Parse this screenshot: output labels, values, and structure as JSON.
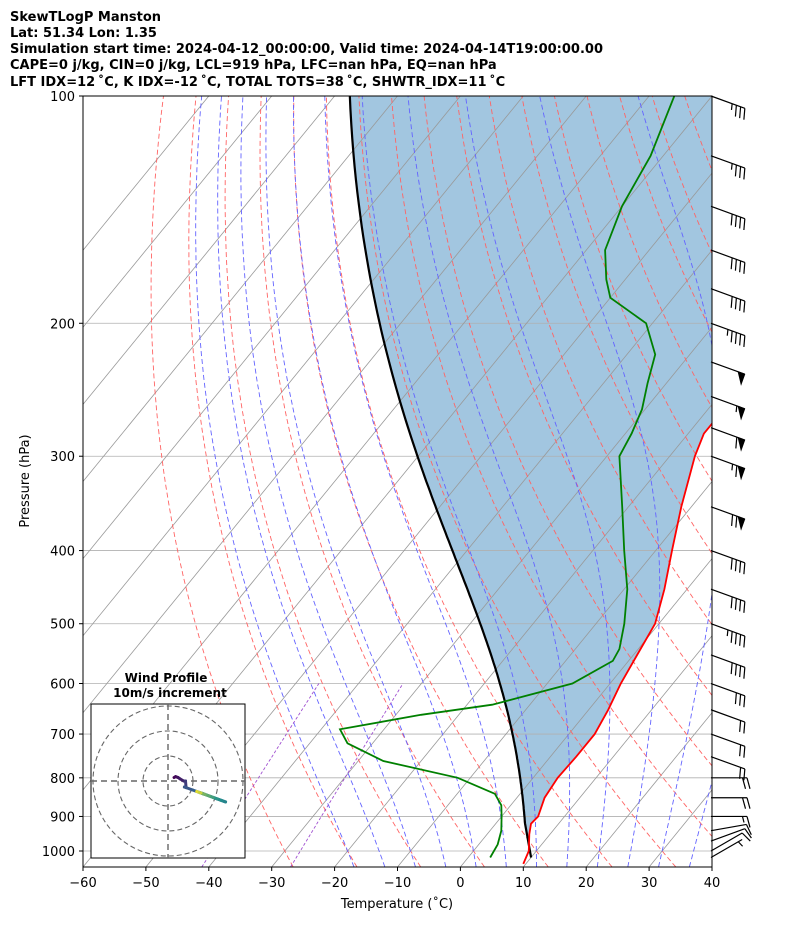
{
  "header": {
    "line1": "SkewTLogP Manston",
    "line2": "Lat: 51.34   Lon: 1.35",
    "line3": "Simulation start time: 2024-04-12_00:00:00, Valid time: 2024-04-14T19:00:00.00",
    "line4": "CAPE=0 j/kg, CIN=0 j/kg, LCL=919 hPa, LFC=nan hPa, EQ=nan hPa",
    "line5": "LFT IDX=12 ˚C, K IDX=-12 ˚C, TOTAL TOTS=38 ˚C, SHWTR_IDX=11 ˚C"
  },
  "chart_data": {
    "type": "line",
    "subtype": "skew-T log-P diagram",
    "xlabel": "Temperature (˚C)",
    "ylabel": "Pressure (hPa)",
    "xlim": [
      -60,
      40
    ],
    "ylim_hpa": [
      1050,
      100
    ],
    "y_scale": "log",
    "xticks": [
      -60,
      -50,
      -40,
      -30,
      -20,
      -10,
      0,
      10,
      20,
      30,
      40
    ],
    "yticks": [
      1000,
      900,
      800,
      700,
      600,
      500,
      400,
      300,
      200,
      100
    ],
    "grid": true,
    "series": [
      {
        "role": "temperature",
        "color": "#ff0000",
        "points": [
          [
            1040,
            9.6
          ],
          [
            1000,
            8.8
          ],
          [
            950,
            6.7
          ],
          [
            920,
            5.6
          ],
          [
            900,
            5.8
          ],
          [
            850,
            4.4
          ],
          [
            800,
            3.9
          ],
          [
            750,
            4.1
          ],
          [
            700,
            4.1
          ],
          [
            650,
            3.1
          ],
          [
            600,
            1.7
          ],
          [
            550,
            0.6
          ],
          [
            500,
            -0.6
          ],
          [
            450,
            -3.6
          ],
          [
            400,
            -7.4
          ],
          [
            350,
            -11.6
          ],
          [
            300,
            -16.0
          ],
          [
            280,
            -17.5
          ],
          [
            260,
            -17.5
          ],
          [
            250,
            -17.0
          ],
          [
            240,
            -16.5
          ],
          [
            220,
            -17.2
          ],
          [
            200,
            -19.0
          ],
          [
            180,
            -21.8
          ],
          [
            160,
            -25.2
          ],
          [
            140,
            -29.4
          ],
          [
            120,
            -35.0
          ],
          [
            110,
            -39.0
          ],
          [
            100,
            -42.5
          ]
        ]
      },
      {
        "role": "dewpoint",
        "color": "#008000",
        "points": [
          [
            1020,
            3.5
          ],
          [
            980,
            3.0
          ],
          [
            940,
            1.8
          ],
          [
            900,
            0.0
          ],
          [
            870,
            -1.5
          ],
          [
            840,
            -4.0
          ],
          [
            800,
            -12.0
          ],
          [
            760,
            -26.0
          ],
          [
            720,
            -34.0
          ],
          [
            690,
            -37.0
          ],
          [
            660,
            -26.0
          ],
          [
            640,
            -16.0
          ],
          [
            600,
            -6.0
          ],
          [
            560,
            -2.5
          ],
          [
            540,
            -3.0
          ],
          [
            500,
            -5.5
          ],
          [
            450,
            -9.5
          ],
          [
            400,
            -15.0
          ],
          [
            350,
            -21.0
          ],
          [
            300,
            -28.0
          ],
          [
            280,
            -29.0
          ],
          [
            260,
            -30.5
          ],
          [
            240,
            -33.0
          ],
          [
            220,
            -35.5
          ],
          [
            200,
            -41.0
          ],
          [
            185,
            -50.0
          ],
          [
            175,
            -53.0
          ],
          [
            160,
            -57.0
          ],
          [
            140,
            -60.0
          ],
          [
            120,
            -62.0
          ],
          [
            100,
            -66.0
          ]
        ]
      },
      {
        "role": "parcel",
        "color": "#000000",
        "points": [
          [
            1020,
            10.0
          ],
          [
            919,
            4.6
          ]
        ],
        "note": "moist adiabatic ascent above LCL"
      }
    ],
    "cape_shading_color": "#a2c6e0",
    "isotherm_color": "#999999",
    "dry_adiabat_color": "#ff6464",
    "moist_adiabat_color": "#6464ff",
    "mixing_ratio_color": "#9f4fd0",
    "wind_barbs": {
      "units": "knots",
      "levels_hpa": [
        1020,
        1000,
        970,
        940,
        900,
        850,
        800,
        750,
        700,
        650,
        600,
        550,
        500,
        450,
        400,
        350,
        300,
        275,
        250,
        225,
        200,
        180,
        160,
        140,
        120,
        100
      ],
      "speed_kt": [
        8,
        10,
        12,
        14,
        18,
        20,
        20,
        22,
        20,
        20,
        30,
        40,
        45,
        40,
        40,
        70,
        65,
        60,
        55,
        50,
        45,
        40,
        40,
        40,
        35,
        35
      ],
      "direction_deg": [
        240,
        240,
        250,
        260,
        270,
        270,
        270,
        290,
        290,
        290,
        290,
        290,
        290,
        290,
        290,
        290,
        290,
        290,
        290,
        290,
        290,
        290,
        290,
        290,
        290,
        290
      ]
    },
    "inset": {
      "title": "Wind Profile",
      "subtitle": "10m/s increment",
      "colormap_start": "#440154",
      "colormap_end": "#fde725"
    }
  }
}
